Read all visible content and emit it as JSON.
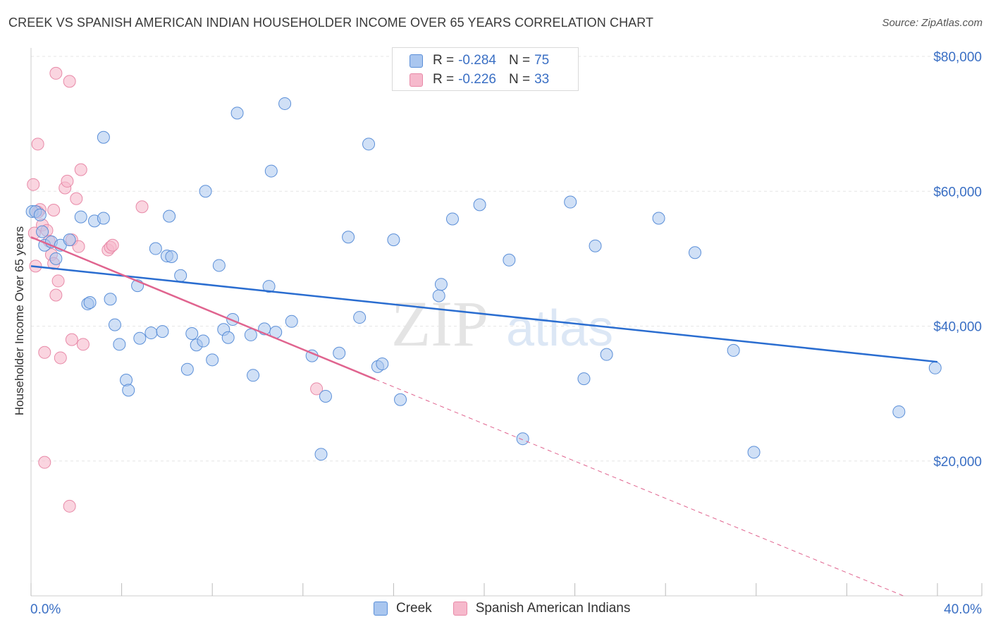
{
  "title": "CREEK VS SPANISH AMERICAN INDIAN HOUSEHOLDER INCOME OVER 65 YEARS CORRELATION CHART",
  "source": "Source: ZipAtlas.com",
  "watermark": {
    "zip": "ZIP",
    "atlas": "atlas"
  },
  "legend": {
    "creek": {
      "r_label": "R =",
      "r_value": "-0.284",
      "n_label": "N =",
      "n_value": "75"
    },
    "spanish": {
      "r_label": "R =",
      "r_value": "-0.226",
      "n_label": "N =",
      "n_value": "33"
    }
  },
  "colors": {
    "creek_fill": "#a9c6ef",
    "creek_stroke": "#5b8fd8",
    "creek_line": "#2a6dd0",
    "spanish_fill": "#f6b9cc",
    "spanish_stroke": "#e88aa8",
    "spanish_line": "#e0648f",
    "tick_label": "#3a6fc4",
    "grid": "#e6e6e6"
  },
  "chart_data": {
    "type": "scatter",
    "title": "CREEK VS SPANISH AMERICAN INDIAN HOUSEHOLDER INCOME OVER 65 YEARS CORRELATION CHART",
    "xlabel": "",
    "ylabel": "Householder Income Over 65 years",
    "xlim": [
      0,
      40
    ],
    "ylim": [
      0,
      80000
    ],
    "x_tick_labels": [
      "0.0%",
      "40.0%"
    ],
    "y_ticks": [
      20000,
      40000,
      60000,
      80000
    ],
    "y_tick_labels": [
      "$20,000",
      "$40,000",
      "$60,000",
      "$80,000"
    ],
    "grid": true,
    "series": [
      {
        "name": "Creek",
        "points": [
          [
            0.05,
            57000
          ],
          [
            0.2,
            57000
          ],
          [
            0.4,
            56500
          ],
          [
            0.5,
            54000
          ],
          [
            0.6,
            52000
          ],
          [
            0.9,
            52500
          ],
          [
            1.1,
            50000
          ],
          [
            1.3,
            52000
          ],
          [
            1.7,
            52800
          ],
          [
            2.2,
            56200
          ],
          [
            2.8,
            55600
          ],
          [
            3.2,
            56000
          ],
          [
            3.2,
            68000
          ],
          [
            2.5,
            43300
          ],
          [
            2.6,
            43500
          ],
          [
            3.5,
            44000
          ],
          [
            3.7,
            40200
          ],
          [
            3.9,
            37300
          ],
          [
            4.2,
            32000
          ],
          [
            4.3,
            30500
          ],
          [
            4.7,
            46000
          ],
          [
            4.8,
            38200
          ],
          [
            5.3,
            39000
          ],
          [
            5.5,
            51500
          ],
          [
            5.8,
            39200
          ],
          [
            6.0,
            50400
          ],
          [
            6.2,
            50300
          ],
          [
            6.1,
            56300
          ],
          [
            6.6,
            47500
          ],
          [
            6.9,
            33600
          ],
          [
            7.1,
            38900
          ],
          [
            7.3,
            37200
          ],
          [
            7.6,
            37800
          ],
          [
            7.7,
            60000
          ],
          [
            8.0,
            35000
          ],
          [
            8.3,
            49000
          ],
          [
            8.5,
            39500
          ],
          [
            8.7,
            38300
          ],
          [
            8.9,
            41000
          ],
          [
            9.1,
            71600
          ],
          [
            9.7,
            38700
          ],
          [
            9.8,
            32700
          ],
          [
            10.3,
            39600
          ],
          [
            10.5,
            45900
          ],
          [
            10.6,
            63000
          ],
          [
            10.8,
            39100
          ],
          [
            11.2,
            73000
          ],
          [
            11.5,
            40700
          ],
          [
            12.4,
            35600
          ],
          [
            12.8,
            21000
          ],
          [
            13.0,
            29600
          ],
          [
            13.6,
            36000
          ],
          [
            14.0,
            53200
          ],
          [
            14.5,
            41300
          ],
          [
            14.9,
            67000
          ],
          [
            15.3,
            34000
          ],
          [
            15.5,
            34400
          ],
          [
            16.0,
            52800
          ],
          [
            16.3,
            29100
          ],
          [
            18.0,
            44500
          ],
          [
            18.1,
            46200
          ],
          [
            18.6,
            55900
          ],
          [
            19.8,
            58000
          ],
          [
            21.1,
            49800
          ],
          [
            21.7,
            23300
          ],
          [
            23.8,
            58400
          ],
          [
            24.4,
            32200
          ],
          [
            24.9,
            51900
          ],
          [
            25.4,
            35800
          ],
          [
            27.7,
            56000
          ],
          [
            29.3,
            50900
          ],
          [
            31.0,
            36400
          ],
          [
            31.9,
            21300
          ],
          [
            38.3,
            27300
          ],
          [
            39.9,
            33800
          ]
        ]
      },
      {
        "name": "Spanish American Indians",
        "points": [
          [
            0.1,
            61000
          ],
          [
            0.15,
            53800
          ],
          [
            0.2,
            48900
          ],
          [
            0.3,
            67000
          ],
          [
            0.4,
            57300
          ],
          [
            0.5,
            55000
          ],
          [
            0.6,
            36100
          ],
          [
            0.6,
            19800
          ],
          [
            0.7,
            54200
          ],
          [
            0.8,
            52600
          ],
          [
            0.9,
            50600
          ],
          [
            1.0,
            57200
          ],
          [
            1.0,
            49300
          ],
          [
            1.1,
            44600
          ],
          [
            1.1,
            77500
          ],
          [
            1.2,
            46700
          ],
          [
            1.3,
            35300
          ],
          [
            1.5,
            60500
          ],
          [
            1.6,
            61500
          ],
          [
            1.7,
            13300
          ],
          [
            1.7,
            76300
          ],
          [
            1.8,
            38000
          ],
          [
            1.8,
            52800
          ],
          [
            2.0,
            58900
          ],
          [
            2.1,
            51800
          ],
          [
            2.2,
            63200
          ],
          [
            2.3,
            37300
          ],
          [
            3.4,
            51300
          ],
          [
            3.5,
            51700
          ],
          [
            3.6,
            52000
          ],
          [
            4.9,
            57700
          ],
          [
            12.6,
            30700
          ],
          [
            0.3,
            56900
          ]
        ]
      }
    ],
    "trend_lines": [
      {
        "series": "Creek",
        "x": [
          0,
          40
        ],
        "y": [
          48900,
          34700
        ]
      },
      {
        "series": "Spanish American Indians",
        "x": [
          0,
          15.2
        ],
        "y": [
          53200,
          32100
        ],
        "dashed_extension_to": [
          38.5,
          0
        ]
      }
    ]
  }
}
